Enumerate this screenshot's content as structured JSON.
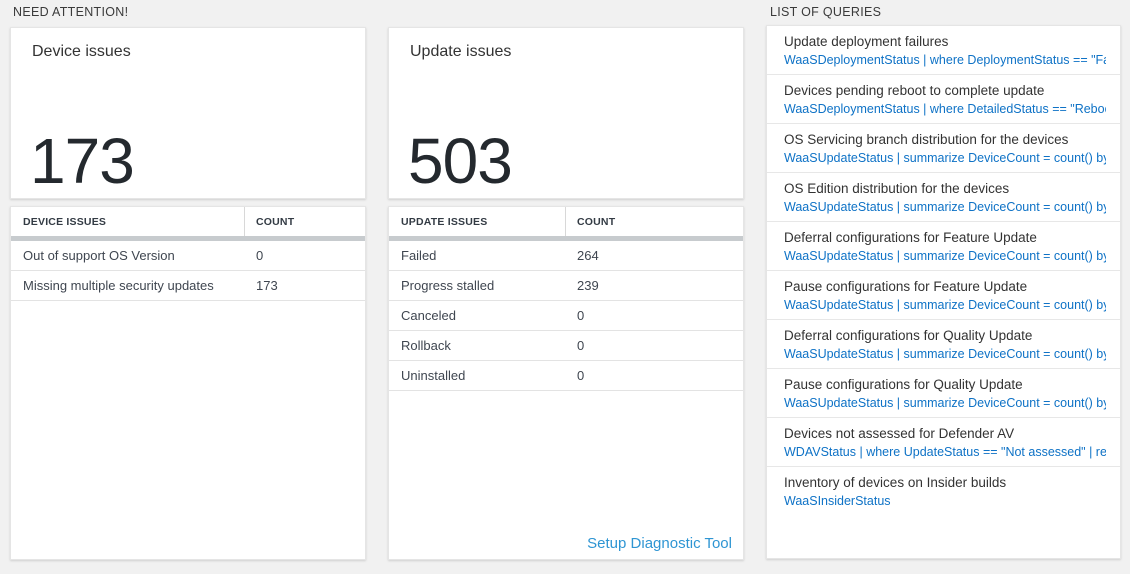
{
  "need_attention": {
    "header": "NEED ATTENTION!",
    "device_tile": {
      "title": "Device issues",
      "value": "173",
      "table": {
        "name_header": "DEVICE ISSUES",
        "count_header": "COUNT",
        "rows": [
          {
            "name": "Out of support OS Version",
            "count": "0"
          },
          {
            "name": "Missing multiple security updates",
            "count": "173"
          }
        ]
      }
    },
    "update_tile": {
      "title": "Update issues",
      "value": "503",
      "table": {
        "name_header": "UPDATE ISSUES",
        "count_header": "COUNT",
        "rows": [
          {
            "name": "Failed",
            "count": "264"
          },
          {
            "name": "Progress stalled",
            "count": "239"
          },
          {
            "name": "Canceled",
            "count": "0"
          },
          {
            "name": "Rollback",
            "count": "0"
          },
          {
            "name": "Uninstalled",
            "count": "0"
          }
        ]
      },
      "footer_link": "Setup Diagnostic Tool"
    }
  },
  "queries": {
    "header": "LIST OF QUERIES",
    "items": [
      {
        "title": "Update deployment failures",
        "query": "WaaSDeploymentStatus | where DeploymentStatus == \"Failed\" |..."
      },
      {
        "title": "Devices pending reboot to complete update",
        "query": "WaaSDeploymentStatus | where DetailedStatus == \"Reboot pend..."
      },
      {
        "title": "OS Servicing branch distribution for the devices",
        "query": "WaaSUpdateStatus | summarize DeviceCount = count() by OSSer..."
      },
      {
        "title": "OS Edition distribution for the devices",
        "query": "WaaSUpdateStatus | summarize DeviceCount = count() by OSEdit..."
      },
      {
        "title": "Deferral configurations for Feature Update",
        "query": "WaaSUpdateStatus | summarize DeviceCount = count() by Featur..."
      },
      {
        "title": "Pause configurations for Feature Update",
        "query": "WaaSUpdateStatus | summarize DeviceCount = count() by Featur..."
      },
      {
        "title": "Deferral configurations for Quality Update",
        "query": "WaaSUpdateStatus | summarize DeviceCount = count() by Qualit..."
      },
      {
        "title": "Pause configurations for Quality Update",
        "query": "WaaSUpdateStatus | summarize DeviceCount = count() by Qualit..."
      },
      {
        "title": "Devices not assessed for Defender AV",
        "query": "WDAVStatus | where UpdateStatus == \"Not assessed\" | render ta..."
      },
      {
        "title": "Inventory of devices on Insider builds",
        "query": "WaaSInsiderStatus"
      }
    ]
  },
  "colors": {
    "page_background": "#f1f1f1",
    "query_link_blue": "#0e72c6",
    "footer_link_blue": "#2e95d3",
    "big_number": "#24292e",
    "grid_bar_gray": "#c7cbce"
  }
}
